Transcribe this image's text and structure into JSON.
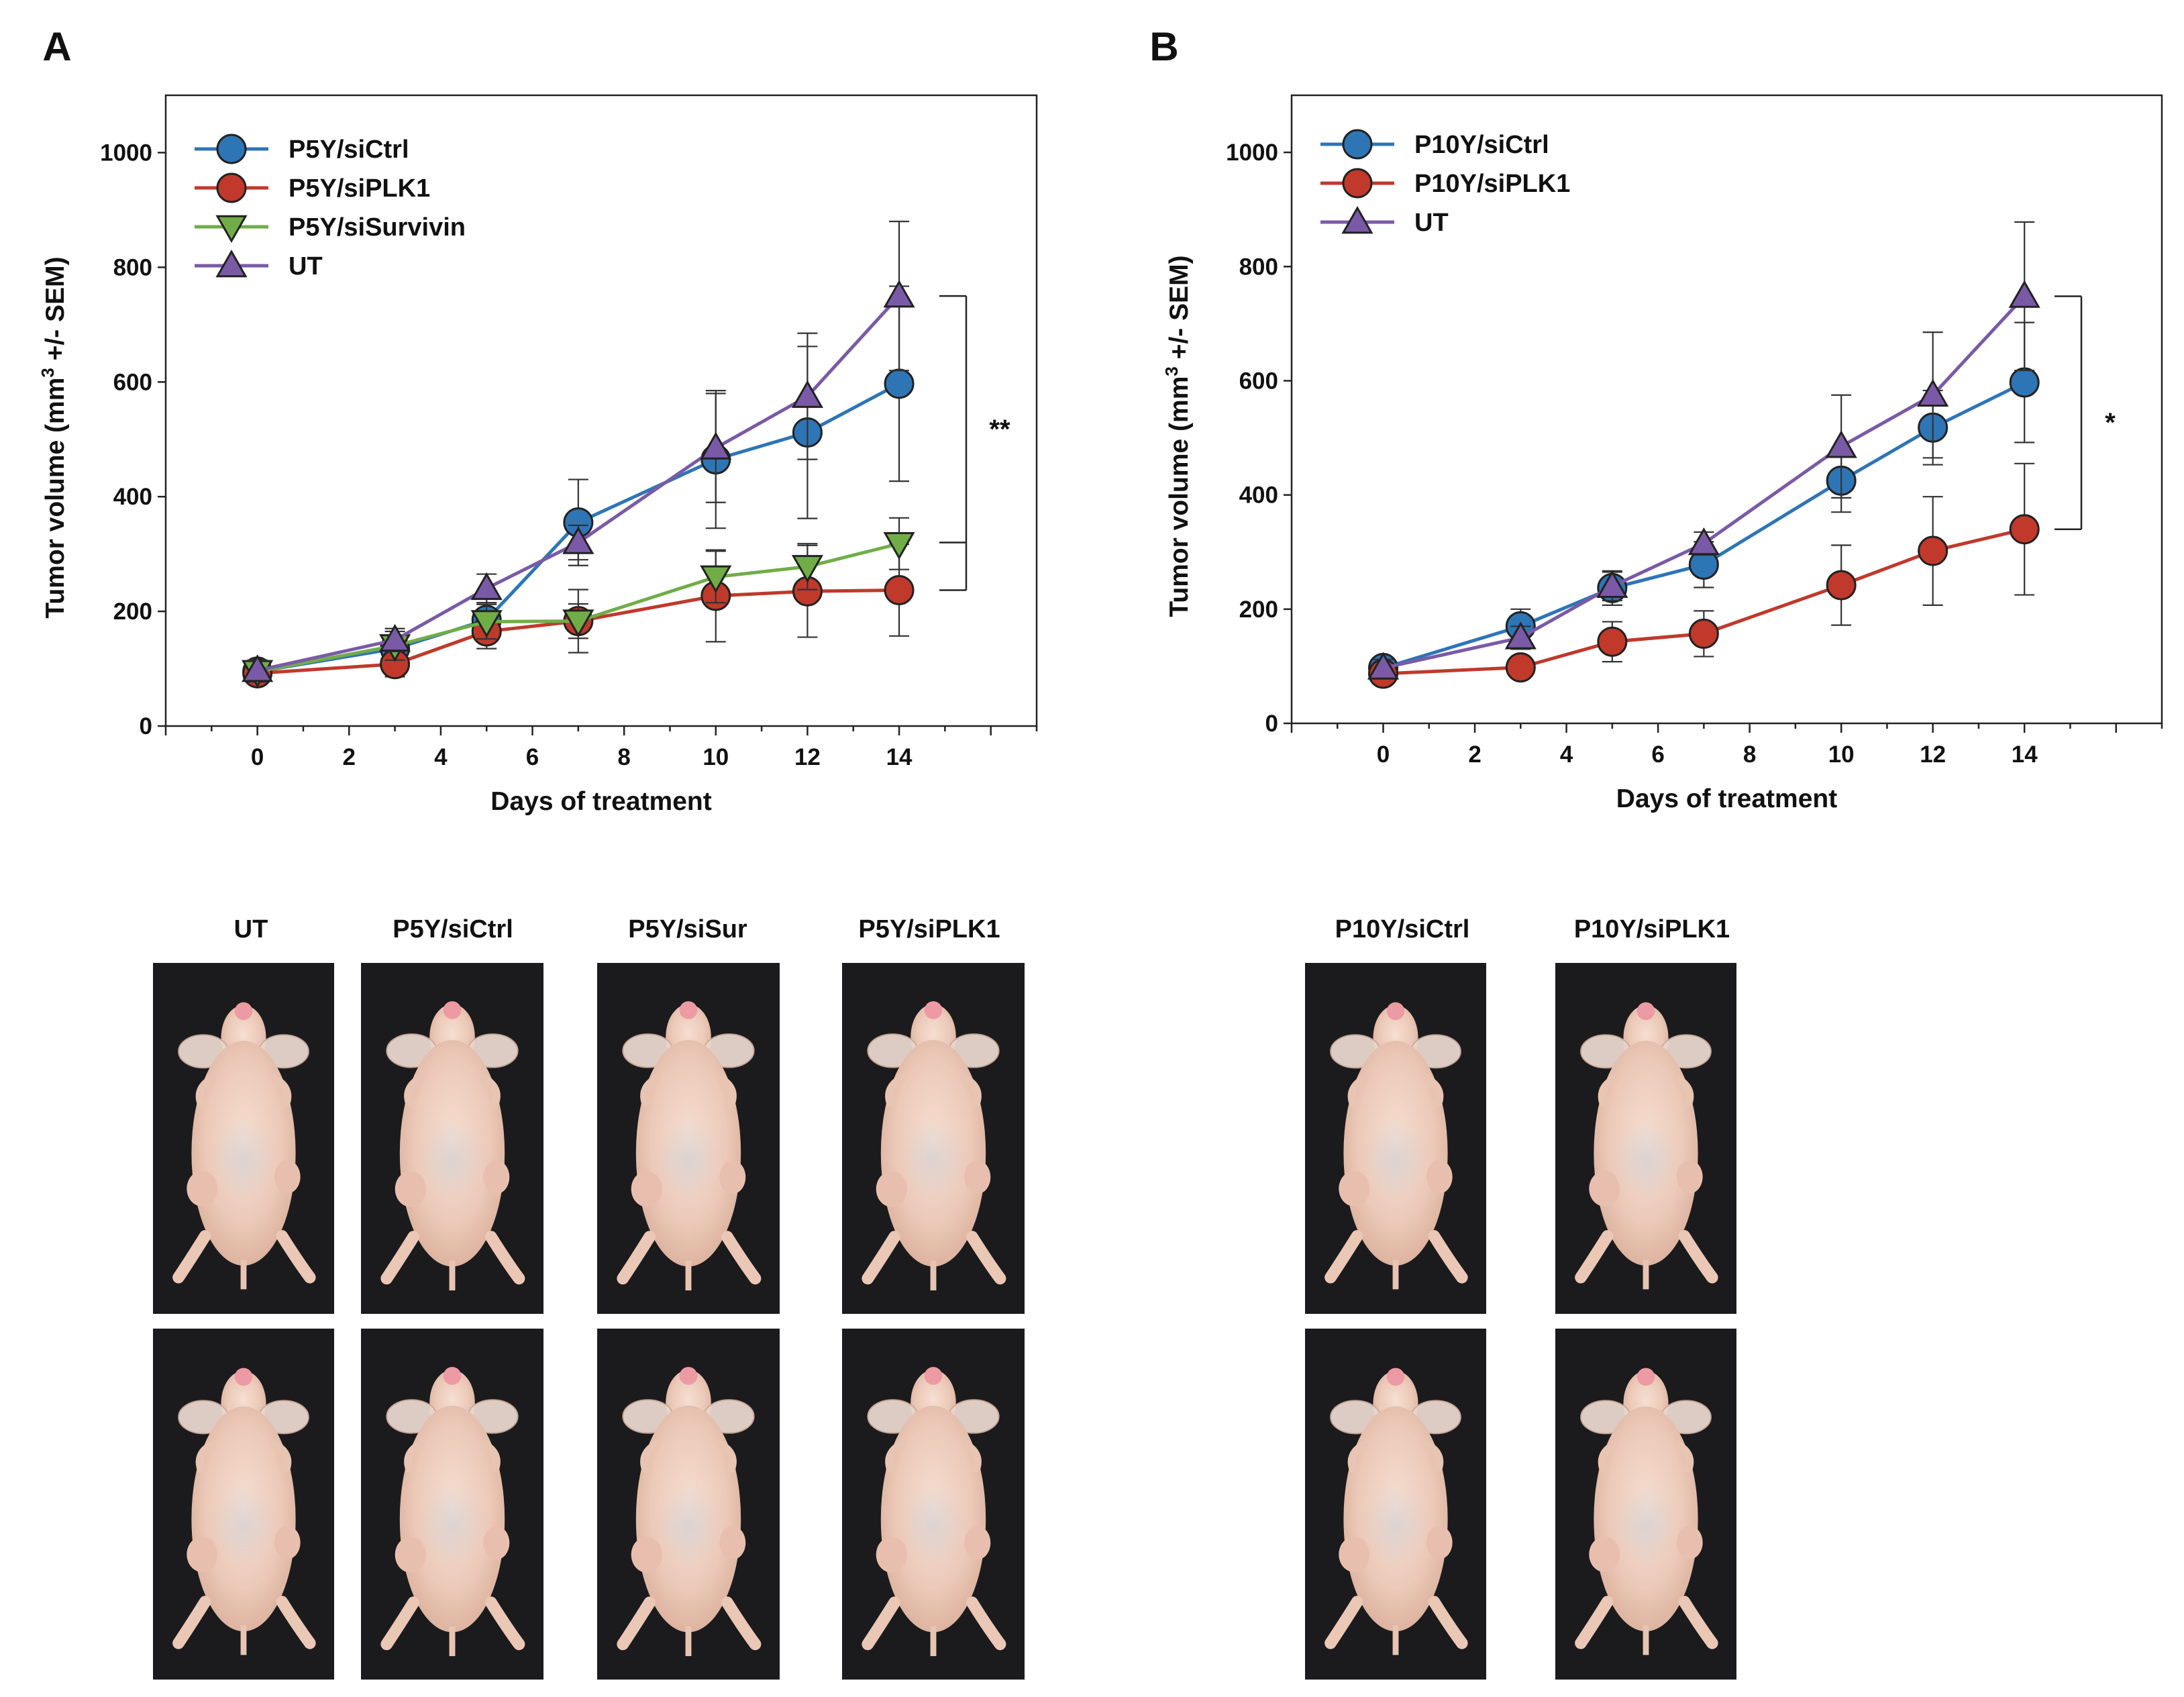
{
  "chart_data": [
    {
      "type": "line",
      "panel_label": "A",
      "xlabel": "Days of treatment",
      "ylabel_prefix": "Tumor volume (mm",
      "ylabel_sup": "3",
      "ylabel_suffix": " +/- SEM)",
      "x": [
        0,
        3,
        5,
        7,
        10,
        12,
        14
      ],
      "xticks": [
        0,
        2,
        4,
        6,
        8,
        10,
        12,
        14
      ],
      "xlim": [
        -2,
        17
      ],
      "yticks": [
        0,
        200,
        400,
        600,
        800,
        1000
      ],
      "ylim": [
        0,
        1100
      ],
      "grid": false,
      "legend_position": "top-left",
      "series": [
        {
          "name": "P5Y/siCtrl",
          "color": "#2e75b6",
          "marker": "circle",
          "values": [
            95,
            135,
            185,
            355,
            465,
            512,
            597
          ],
          "errors": [
            18,
            22,
            30,
            75,
            120,
            150,
            170
          ]
        },
        {
          "name": "P5Y/siPLK1",
          "color": "#c0392b",
          "marker": "circle",
          "values": [
            92,
            108,
            165,
            183,
            227,
            235,
            237
          ],
          "errors": [
            16,
            22,
            30,
            55,
            80,
            80,
            80
          ]
        },
        {
          "name": "P5Y/siSurvivin",
          "color": "#70ad47",
          "marker": "triangle-down",
          "values": [
            95,
            140,
            182,
            183,
            260,
            278,
            318
          ],
          "errors": [
            18,
            25,
            30,
            30,
            45,
            40,
            45
          ]
        },
        {
          "name": "UT",
          "color": "#7a5aa6",
          "marker": "triangle-up",
          "values": [
            97,
            150,
            240,
            320,
            485,
            575,
            750
          ],
          "errors": [
            18,
            20,
            25,
            30,
            95,
            110,
            130
          ]
        }
      ],
      "significance": {
        "label": "**"
      }
    },
    {
      "type": "line",
      "panel_label": "B",
      "xlabel": "Days of treatment",
      "ylabel_prefix": "Tumor volume (mm",
      "ylabel_sup": "3",
      "ylabel_suffix": " +/- SEM)",
      "x": [
        0,
        3,
        5,
        7,
        10,
        12,
        14
      ],
      "xticks": [
        0,
        2,
        4,
        6,
        8,
        10,
        12,
        14
      ],
      "xlim": [
        -2,
        17
      ],
      "yticks": [
        0,
        200,
        400,
        600,
        800,
        1000
      ],
      "ylim": [
        0,
        1100
      ],
      "grid": false,
      "legend_position": "top-left",
      "series": [
        {
          "name": "P10Y/siCtrl",
          "color": "#2e75b6",
          "marker": "circle",
          "values": [
            97,
            170,
            237,
            278,
            425,
            518,
            597
          ],
          "errors": [
            15,
            30,
            30,
            40,
            55,
            65,
            105
          ]
        },
        {
          "name": "P10Y/siPLK1",
          "color": "#c0392b",
          "marker": "circle",
          "values": [
            87,
            98,
            143,
            157,
            242,
            302,
            340
          ],
          "errors": [
            12,
            15,
            35,
            40,
            70,
            95,
            115
          ]
        },
        {
          "name": "UT",
          "color": "#7a5aa6",
          "marker": "triangle-up",
          "values": [
            97,
            150,
            240,
            315,
            485,
            575,
            748
          ],
          "errors": [
            15,
            20,
            25,
            20,
            90,
            110,
            130
          ]
        }
      ],
      "significance": {
        "label": "*"
      }
    }
  ],
  "photos": {
    "left_labels": [
      "UT",
      "P5Y/siCtrl",
      "P5Y/siSur",
      "P5Y/siPLK1"
    ],
    "right_labels": [
      "P10Y/siCtrl",
      "P10Y/siPLK1"
    ]
  }
}
